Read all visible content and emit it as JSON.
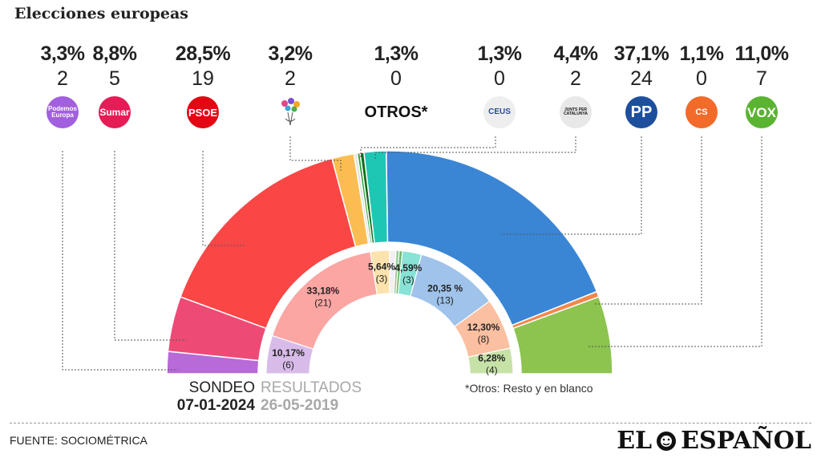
{
  "title": "Elecciones europeas",
  "parties": [
    {
      "pct": "3,3%",
      "seats": "2",
      "logo": "Podemos Europa",
      "logo_kind": "podemos",
      "color": "#a25fe0"
    },
    {
      "pct": "8,8%",
      "seats": "5",
      "logo": "Sumar",
      "logo_kind": "sumar",
      "color": "#e51c55"
    },
    {
      "pct": "28,5%",
      "seats": "19",
      "logo": "PSOE",
      "logo_kind": "psoe",
      "color": "#e30613"
    },
    {
      "pct": "3,2%",
      "seats": "2",
      "logo": "",
      "logo_kind": "flower",
      "color": "#ffffff"
    },
    {
      "pct": "1,3%",
      "seats": "0",
      "logo": "OTROS*",
      "logo_kind": "otros",
      "color": "#ffffff"
    },
    {
      "pct": "1,3%",
      "seats": "0",
      "logo": "CEUS",
      "logo_kind": "ceus",
      "color": "#eeeeee"
    },
    {
      "pct": "4,4%",
      "seats": "2",
      "logo": "JUNTS PER CATALUNYA",
      "logo_kind": "junts",
      "color": "#e8e8e8"
    },
    {
      "pct": "37,1%",
      "seats": "24",
      "logo": "PP",
      "logo_kind": "pp",
      "color": "#1d4f9c"
    },
    {
      "pct": "1,1%",
      "seats": "0",
      "logo": "CS",
      "logo_kind": "cs",
      "color": "#f26b2a"
    },
    {
      "pct": "11,0%",
      "seats": "7",
      "logo": "VOX",
      "logo_kind": "vox",
      "color": "#5ab431"
    }
  ],
  "chart_data": {
    "type": "pie",
    "outer_ring": {
      "name": "SONDEO 07-01-2024",
      "slices": [
        {
          "party": "Podemos",
          "seats": 2,
          "color": "#b86ad8"
        },
        {
          "party": "Sumar",
          "seats": 5,
          "color": "#ee4a76"
        },
        {
          "party": "PSOE",
          "seats": 19,
          "color": "#fb4646"
        },
        {
          "party": "Flower",
          "seats": 2,
          "color": "#fbbd52"
        },
        {
          "party": "Otros-1",
          "seats": 0.3,
          "color": "#e4e4e4"
        },
        {
          "party": "Otros-2",
          "seats": 0.25,
          "color": "#28a12a"
        },
        {
          "party": "Otros-3",
          "seats": 0.35,
          "color": "#0e6d1c"
        },
        {
          "party": "Junts",
          "seats": 2,
          "color": "#1ec7b3"
        },
        {
          "party": "PP",
          "seats": 24,
          "color": "#3a86d4"
        },
        {
          "party": "CS",
          "seats": 0.5,
          "color": "#f4874b"
        },
        {
          "party": "VOX",
          "seats": 7,
          "color": "#8cc44f"
        }
      ]
    },
    "inner_ring": {
      "name": "RESULTADOS 26-05-2019",
      "slices": [
        {
          "party": "Podemos",
          "seats": 6,
          "color": "#d8bbe8",
          "label": "10,17%",
          "label2": "(6)"
        },
        {
          "party": "PSOE",
          "seats": 21,
          "color": "#fba6a3",
          "label": "33,18%",
          "label2": "(21)"
        },
        {
          "party": "Flower",
          "seats": 3,
          "color": "#fce2ad",
          "label": "5,64%",
          "label2": "(3)"
        },
        {
          "party": "Otros-a",
          "seats": 1,
          "color": "#f0f0f0",
          "label": "",
          "label2": ""
        },
        {
          "party": "Otros-b",
          "seats": 0.5,
          "color": "#99cc99",
          "label": "",
          "label2": ""
        },
        {
          "party": "Otros-c",
          "seats": 0.5,
          "color": "#6fb56f",
          "label": "",
          "label2": ""
        },
        {
          "party": "Junts",
          "seats": 3,
          "color": "#88e2d6",
          "label": "4,59%",
          "label2": "(3)"
        },
        {
          "party": "PP",
          "seats": 13,
          "color": "#9fc3ea",
          "label": "20,35 %",
          "label2": "(13)"
        },
        {
          "party": "CS",
          "seats": 8,
          "color": "#fbbfa1",
          "label": "12,30%",
          "label2": "(8)"
        },
        {
          "party": "VOX",
          "seats": 4,
          "color": "#c7e2a7",
          "label": "6,28%",
          "label2": "(4)"
        }
      ]
    }
  },
  "labels": {
    "sondeo": "SONDEO",
    "sondeo_date": "07-01-2024",
    "resultados": "RESULTADOS",
    "resultados_date": "26-05-2019",
    "otros_note": "*Otros: Resto y en blanco"
  },
  "footer": {
    "source": "FUENTE: SOCIOMÉTRICA",
    "brand_left": "EL",
    "brand_right": "ESPAÑOL"
  }
}
